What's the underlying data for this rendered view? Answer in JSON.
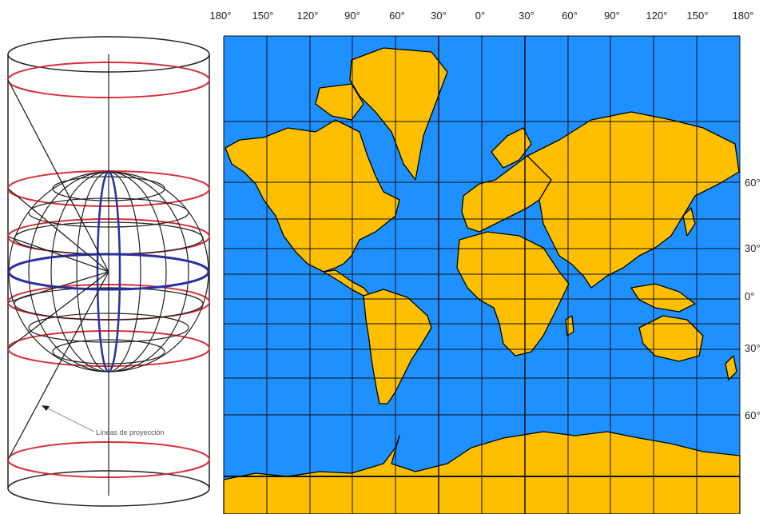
{
  "figure": {
    "projection_label": "Líneas de proyección",
    "colors": {
      "ocean": "#1e90ff",
      "land": "#fdbf00",
      "grid": "#111111",
      "globe_lines": "#222222",
      "cylinder_circles": "#d9303a",
      "equator": "#2a2fa0"
    }
  },
  "map": {
    "longitude_labels": [
      "180°",
      "150°",
      "120°",
      "90°",
      "60°",
      "30°",
      "0°",
      "30°",
      "60°",
      "90°",
      "120°",
      "150°",
      "180°"
    ],
    "latitude_labels": [
      "60°",
      "30°",
      "0°",
      "30°",
      "60°"
    ]
  }
}
